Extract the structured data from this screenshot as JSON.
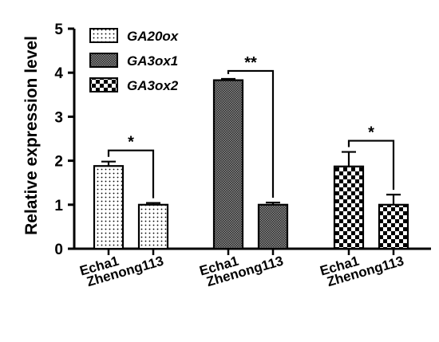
{
  "chart_data": {
    "type": "bar",
    "ylabel": "Relative expression level",
    "ylim": [
      0,
      5
    ],
    "yticks": [
      0,
      1,
      2,
      3,
      4,
      5
    ],
    "categories": [
      "Echa1",
      "Zhenong113"
    ],
    "series": [
      {
        "name": "GA20ox",
        "pattern": "dots",
        "values": [
          1.88,
          1.0
        ],
        "errors": [
          0.1,
          0.04
        ],
        "significance": "*"
      },
      {
        "name": "GA3ox1",
        "pattern": "mesh",
        "values": [
          3.83,
          1.0
        ],
        "errors": [
          0.03,
          0.05
        ],
        "significance": "**"
      },
      {
        "name": "GA3ox2",
        "pattern": "checks",
        "values": [
          1.87,
          1.0
        ],
        "errors": [
          0.33,
          0.23
        ],
        "significance": "*"
      }
    ],
    "legend": "top-left",
    "grid": false
  }
}
